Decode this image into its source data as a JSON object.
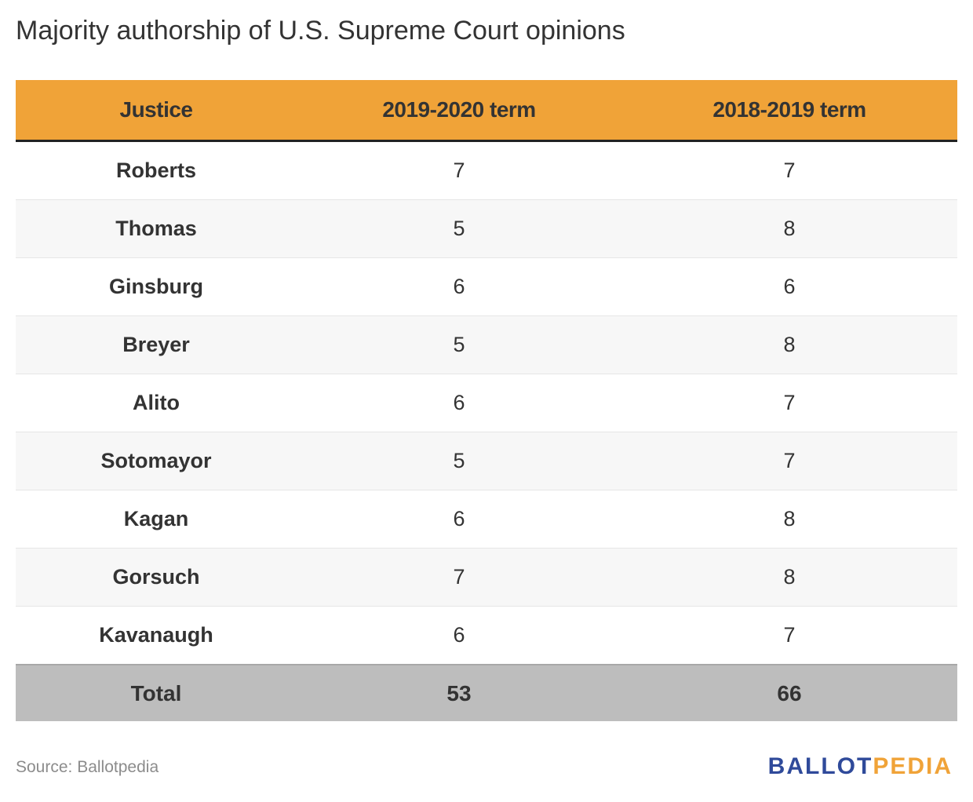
{
  "chart_data": {
    "type": "table",
    "title": "Majority authorship of U.S. Supreme Court opinions",
    "columns": [
      "Justice",
      "2019-2020 term",
      "2018-2019 term"
    ],
    "rows": [
      [
        "Roberts",
        "7",
        "7"
      ],
      [
        "Thomas",
        "5",
        "8"
      ],
      [
        "Ginsburg",
        "6",
        "6"
      ],
      [
        "Breyer",
        "5",
        "8"
      ],
      [
        "Alito",
        "6",
        "7"
      ],
      [
        "Sotomayor",
        "5",
        "7"
      ],
      [
        "Kagan",
        "6",
        "8"
      ],
      [
        "Gorsuch",
        "7",
        "8"
      ],
      [
        "Kavanaugh",
        "6",
        "7"
      ]
    ],
    "total": [
      "Total",
      "53",
      "66"
    ]
  },
  "footer": {
    "source": "Source: Ballotpedia",
    "logo_part1": "BALLOT",
    "logo_part2": "PEDIA"
  },
  "colors": {
    "header": "#f0a338",
    "total_row": "#bdbdbd",
    "logo_blue": "#2f4a9a",
    "logo_orange": "#f0a338"
  }
}
